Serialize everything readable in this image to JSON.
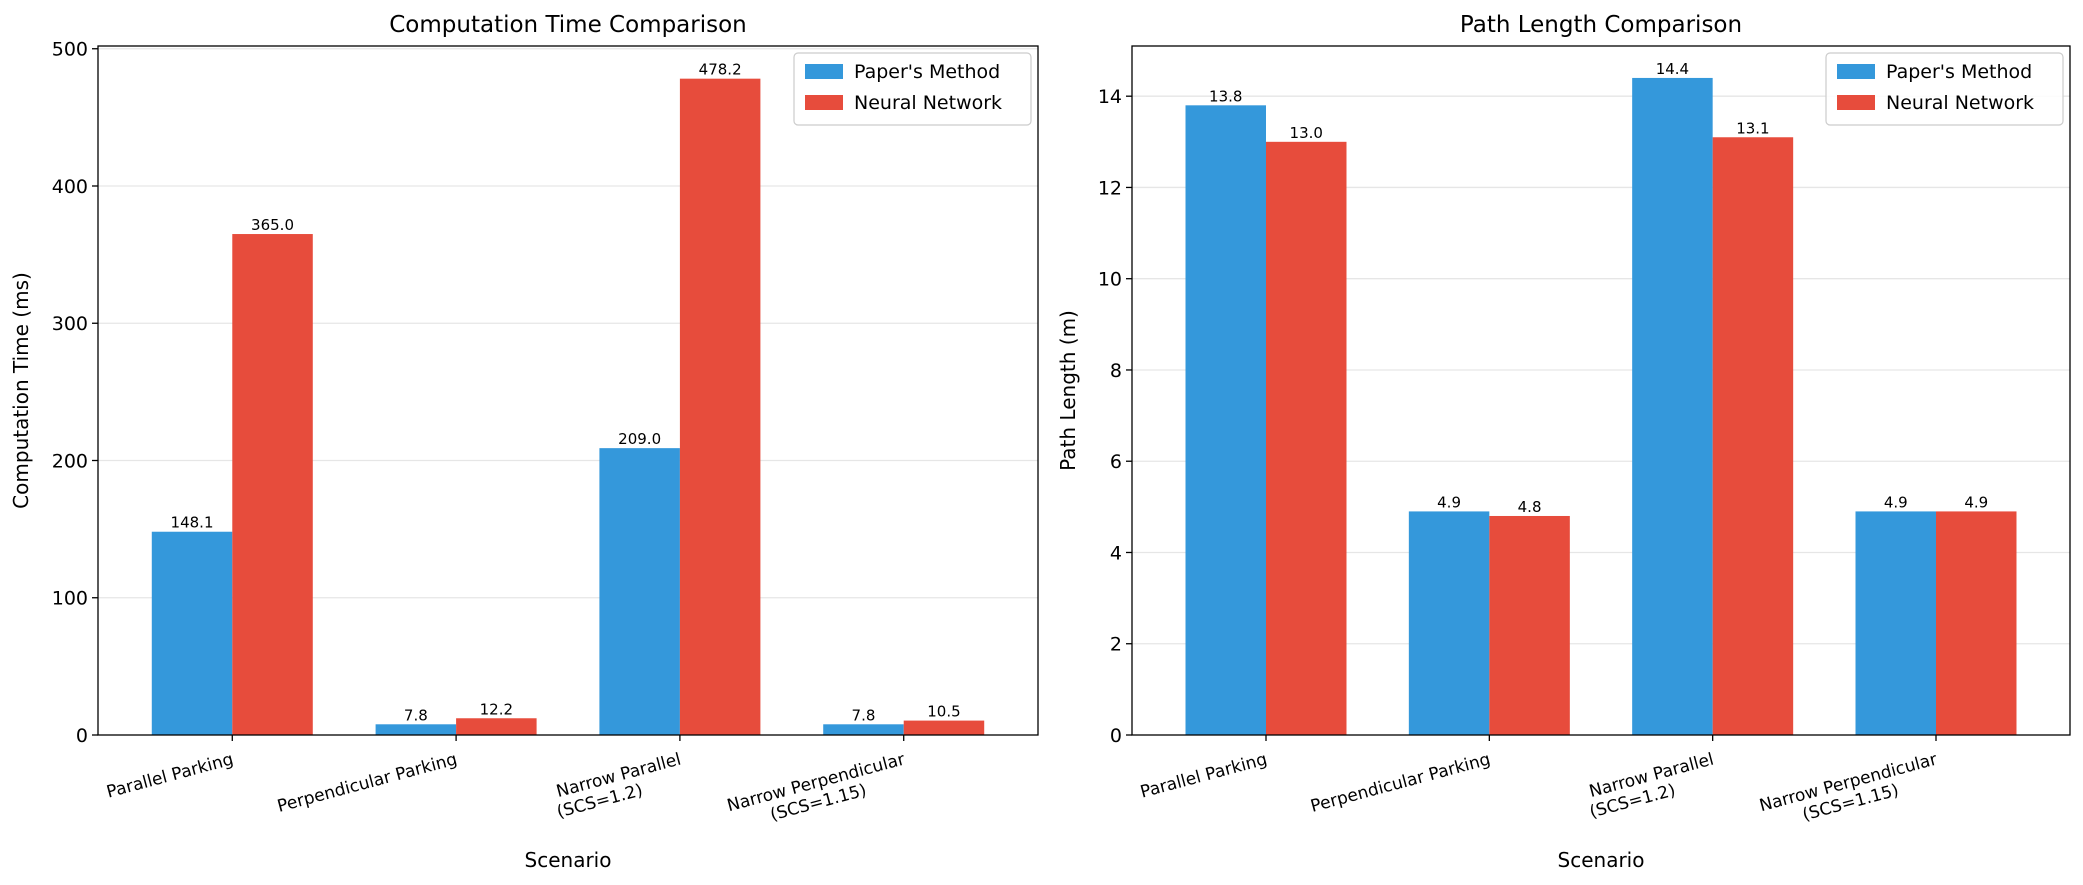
{
  "chart_data": [
    {
      "type": "bar",
      "title": "Computation Time Comparison",
      "xlabel": "Scenario",
      "ylabel": "Computation Time (ms)",
      "ylim": [
        0,
        502
      ],
      "yticks": [
        0,
        100,
        200,
        300,
        400,
        500
      ],
      "grid": "y",
      "legend_position": "top-right",
      "categories": [
        "Parallel Parking",
        "Perpendicular Parking",
        "Narrow Parallel\n(SCS=1.2)",
        "Narrow Perpendicular\n(SCS=1.15)"
      ],
      "series": [
        {
          "name": "Paper's Method",
          "color": "#3498db",
          "values": [
            148.1,
            7.8,
            209.0,
            7.8
          ],
          "labels": [
            "148.1",
            "7.8",
            "209.0",
            "7.8"
          ]
        },
        {
          "name": "Neural Network",
          "color": "#e74c3c",
          "values": [
            365.0,
            12.2,
            478.2,
            10.5
          ],
          "labels": [
            "365.0",
            "12.2",
            "478.2",
            "10.5"
          ]
        }
      ]
    },
    {
      "type": "bar",
      "title": "Path Length Comparison",
      "xlabel": "Scenario",
      "ylabel": "Path Length (m)",
      "ylim": [
        0,
        15.1
      ],
      "yticks": [
        0,
        2,
        4,
        6,
        8,
        10,
        12,
        14
      ],
      "grid": "y",
      "legend_position": "top-right",
      "categories": [
        "Parallel Parking",
        "Perpendicular Parking",
        "Narrow Parallel\n(SCS=1.2)",
        "Narrow Perpendicular\n(SCS=1.15)"
      ],
      "series": [
        {
          "name": "Paper's Method",
          "color": "#3498db",
          "values": [
            13.8,
            4.9,
            14.4,
            4.9
          ],
          "labels": [
            "13.8",
            "4.9",
            "14.4",
            "4.9"
          ]
        },
        {
          "name": "Neural Network",
          "color": "#e74c3c",
          "values": [
            13.0,
            4.8,
            13.1,
            4.9
          ],
          "labels": [
            "13.0",
            "4.8",
            "13.1",
            "4.9"
          ]
        }
      ]
    }
  ]
}
